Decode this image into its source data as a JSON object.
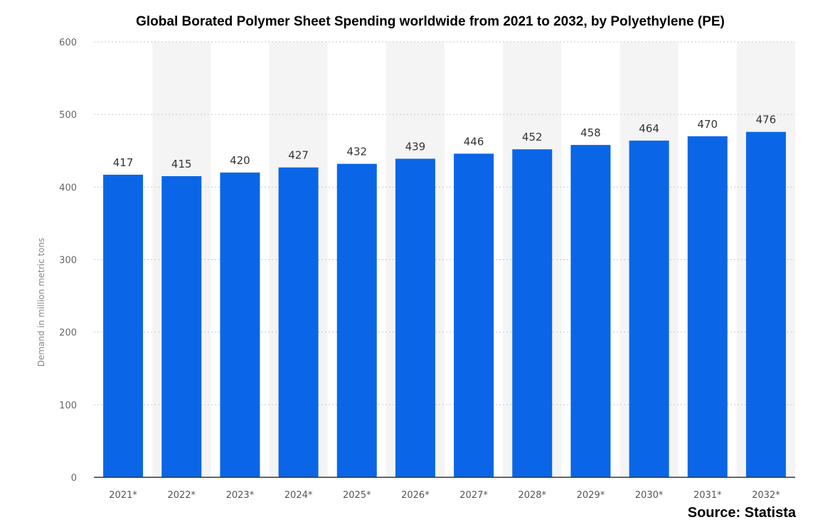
{
  "title": "Global Borated Polymer Sheet Spending worldwide from 2021 to 2032, by Polyethylene (PE)",
  "source": "Source: Statista",
  "colors": {
    "bar": "#0A66E6",
    "band": "#F4F4F4",
    "grid": "#C8C8C8",
    "axis": "#333333"
  },
  "chart_data": {
    "type": "bar",
    "title": "Global Borated Polymer Sheet Spending worldwide from 2021 to 2032, by Polyethylene (PE)",
    "xlabel": "",
    "ylabel": "Demand in million metric tons",
    "categories": [
      "2021*",
      "2022*",
      "2023*",
      "2024*",
      "2025*",
      "2026*",
      "2027*",
      "2028*",
      "2029*",
      "2030*",
      "2031*",
      "2032*"
    ],
    "values": [
      417,
      415,
      420,
      427,
      432,
      439,
      446,
      452,
      458,
      464,
      470,
      476
    ],
    "ylim": [
      0,
      600
    ],
    "yticks": [
      0,
      100,
      200,
      300,
      400,
      500,
      600
    ],
    "grid": true,
    "grid_style": "dotted",
    "alternating_bands": true,
    "data_labels": true,
    "legend": "none"
  }
}
